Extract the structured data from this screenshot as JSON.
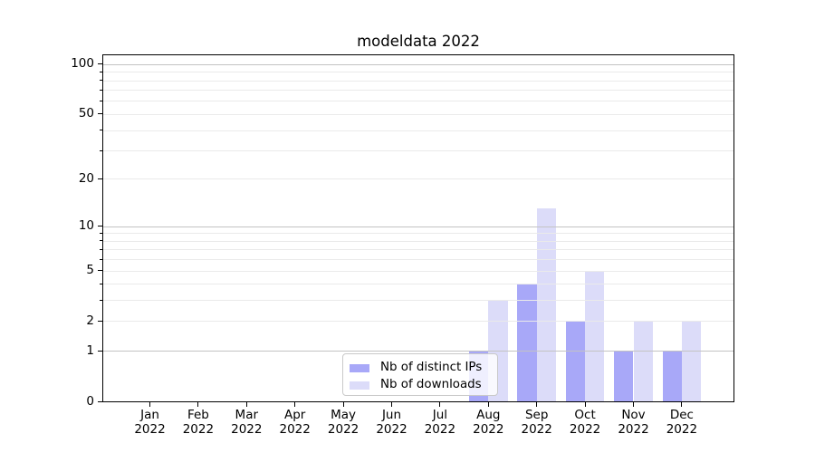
{
  "title": "modeldata 2022",
  "chart_data": {
    "type": "bar",
    "title": "modeldata 2022",
    "categories": [
      "Jan 2022",
      "Feb 2022",
      "Mar 2022",
      "Apr 2022",
      "May 2022",
      "Jun 2022",
      "Jul 2022",
      "Aug 2022",
      "Sep 2022",
      "Oct 2022",
      "Nov 2022",
      "Dec 2022"
    ],
    "x_tick_months": [
      "Jan",
      "Feb",
      "Mar",
      "Apr",
      "May",
      "Jun",
      "Jul",
      "Aug",
      "Sep",
      "Oct",
      "Nov",
      "Dec"
    ],
    "x_tick_year": "2022",
    "series": [
      {
        "name": "Nb of distinct IPs",
        "color": "#a8a8f8",
        "values": [
          0,
          0,
          0,
          0,
          0,
          0,
          0,
          1,
          4,
          2,
          1,
          1
        ]
      },
      {
        "name": "Nb of downloads",
        "color": "#dcdcf9",
        "values": [
          0,
          0,
          0,
          0,
          0,
          0,
          0,
          3,
          13,
          5,
          2,
          2
        ]
      }
    ],
    "xlabel": "",
    "ylabel": "",
    "yscale": "log1p",
    "ylim": [
      0,
      113
    ],
    "ytick_values": [
      0,
      1,
      2,
      5,
      10,
      20,
      50,
      100
    ],
    "ytick_labels": [
      "0",
      "1",
      "2",
      "5",
      "10",
      "20",
      "50",
      "100"
    ],
    "minor_grid_values": [
      2,
      3,
      4,
      5,
      6,
      7,
      8,
      9,
      20,
      30,
      40,
      50,
      60,
      70,
      80,
      90
    ],
    "major_grid_values": [
      1,
      10,
      100
    ],
    "grid": "horizontal major+minor, grid drawn above bars",
    "legend_position": "lower center inside plot",
    "colors": {
      "background": "#ffffff",
      "spine": "#000000",
      "major_grid": "#c3c3c3",
      "minor_grid": "#eaeaea",
      "tick_text": "#000000"
    }
  },
  "legend": {
    "items": [
      {
        "label": "Nb of distinct IPs",
        "swatch_color": "#a8a8f8"
      },
      {
        "label": "Nb of downloads",
        "swatch_color": "#dcdcf9"
      }
    ]
  }
}
